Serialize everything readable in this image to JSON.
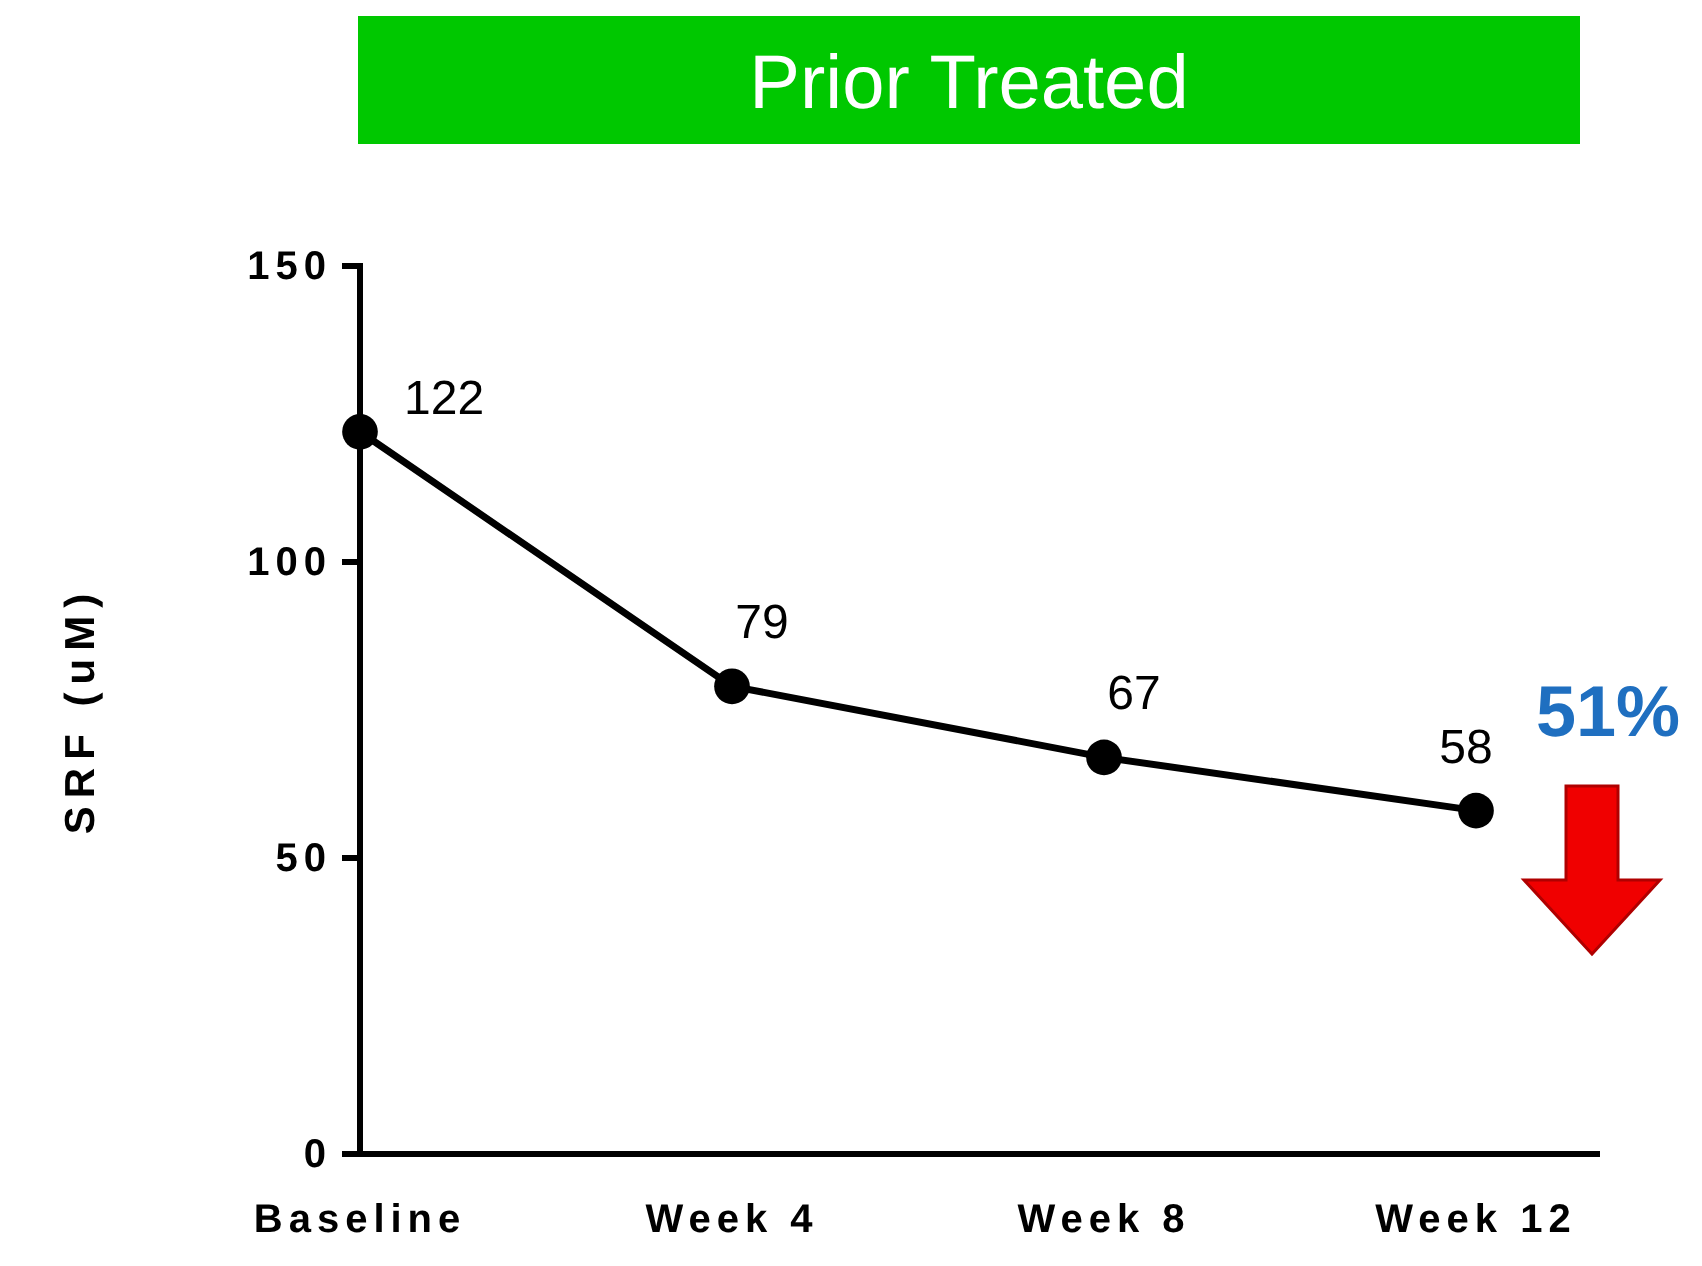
{
  "chart_data": {
    "type": "line",
    "title": "Prior Treated",
    "ylabel": "SRF (uM)",
    "categories": [
      "Baseline",
      "Week 4",
      "Week 8",
      "Week 12"
    ],
    "series": [
      {
        "color": "#000000",
        "values": [
          122,
          79,
          67,
          58
        ]
      }
    ],
    "ylim": [
      0,
      150
    ],
    "yticks": [
      0,
      50,
      100,
      150
    ],
    "grid": false,
    "marker": "circle",
    "line_style": "solid",
    "data_labels": true,
    "annotations": [
      "51%"
    ]
  }
}
